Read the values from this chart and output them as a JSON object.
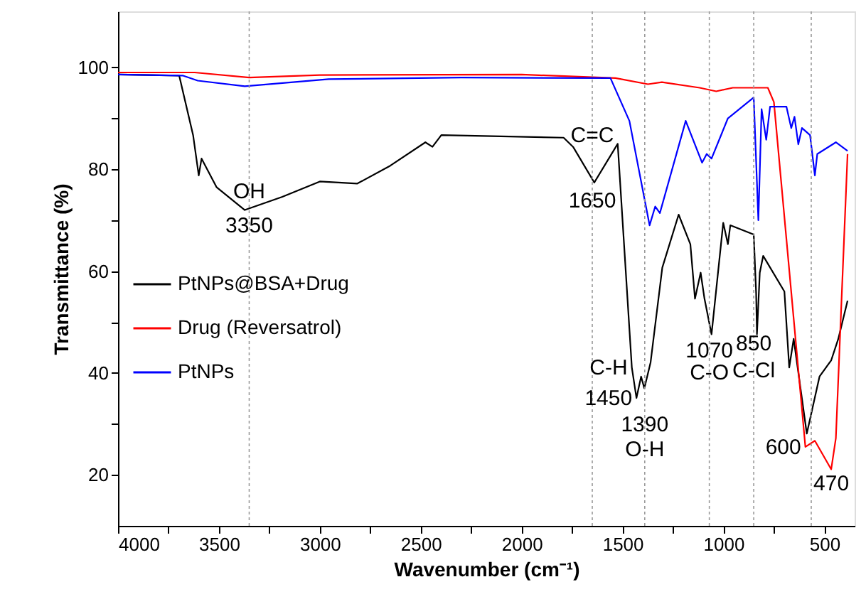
{
  "chart_data": {
    "type": "line",
    "xlabel": "Wavenumber (cm⁻¹)",
    "ylabel": "Transmittance (%)",
    "xlim": [
      4000,
      350
    ],
    "ylim": [
      10,
      111
    ],
    "xticks": [
      4000,
      {
        "value": 3750,
        "label": null
      },
      3500,
      {
        "value": 3250,
        "label": null
      },
      3000,
      {
        "value": 2750,
        "label": null
      },
      2500,
      {
        "value": 2250,
        "label": null
      },
      2000,
      {
        "value": 1750,
        "label": null
      },
      1500,
      {
        "value": 1250,
        "label": null
      },
      1000,
      {
        "value": 750,
        "label": null
      },
      500
    ],
    "yticks": [
      20,
      {
        "value": 30,
        "label": null
      },
      40,
      {
        "value": 50,
        "label": null
      },
      60,
      {
        "value": 70,
        "label": null
      },
      80,
      {
        "value": 90,
        "label": null
      },
      100
    ],
    "grid": false,
    "legend": "left",
    "marker": "none",
    "line_style": "solid",
    "series": [
      {
        "name": "PtNPs@BSA+Drug",
        "color": "#000000",
        "x": [
          4000,
          3697,
          3628,
          3600,
          3586,
          3512,
          3372,
          3186,
          3000,
          2814,
          2651,
          2477,
          2442,
          2398,
          1792,
          1745,
          1640,
          1524,
          1454,
          1431,
          1408,
          1392,
          1361,
          1303,
          1222,
          1164,
          1141,
          1113,
          1094,
          1059,
          1001,
          978,
          966,
          850,
          838,
          834,
          820,
          803,
          698,
          674,
          652,
          587,
          524,
          466,
          431,
          385
        ],
        "values": [
          98.6,
          98.4,
          86.7,
          78.8,
          82.1,
          76.5,
          72.0,
          74.6,
          77.6,
          77.2,
          80.7,
          85.3,
          84.4,
          86.7,
          86.2,
          84.4,
          77.4,
          85.0,
          41.1,
          35.1,
          39.3,
          37.0,
          42.1,
          60.7,
          71.1,
          65.3,
          54.6,
          59.7,
          54.6,
          47.6,
          69.5,
          65.3,
          69.0,
          67.2,
          55.6,
          47.6,
          59.7,
          63.0,
          56.0,
          41.1,
          46.7,
          28.1,
          39.3,
          42.5,
          46.7,
          54.2
        ]
      },
      {
        "name": "Drug (Reversatrol)",
        "color": "#ff0000",
        "x": [
          4000,
          3620,
          3350,
          3000,
          2000,
          1535,
          1374,
          1305,
          1118,
          1036,
          954,
          780,
          750,
          594,
          547,
          466,
          443,
          385
        ],
        "values": [
          99.0,
          99.0,
          98.0,
          98.5,
          98.6,
          97.9,
          96.7,
          97.1,
          96.0,
          95.3,
          96.0,
          96.0,
          93.2,
          25.5,
          26.7,
          21.1,
          27.2,
          83.0
        ]
      },
      {
        "name": "PtNPs",
        "color": "#0000ff",
        "x": [
          4000,
          3680,
          3605,
          3372,
          2956,
          2300,
          1560,
          1466,
          1366,
          1338,
          1315,
          1187,
          1106,
          1083,
          1059,
          978,
          850,
          827,
          811,
          788,
          769,
          688,
          664,
          648,
          629,
          611,
          571,
          547,
          535,
          443,
          385
        ],
        "values": [
          98.6,
          98.4,
          97.4,
          96.3,
          97.7,
          98.0,
          97.9,
          89.5,
          69.0,
          72.7,
          71.4,
          89.5,
          81.3,
          83.0,
          82.1,
          90.0,
          94.1,
          70.0,
          91.8,
          85.8,
          92.3,
          92.3,
          88.1,
          90.3,
          84.9,
          88.1,
          86.7,
          78.8,
          83.0,
          85.3,
          83.6
        ]
      }
    ],
    "ref_lines": [
      {
        "axis": "x",
        "value": 3350,
        "color": "#999999",
        "line_style": "dotted"
      },
      {
        "axis": "x",
        "value": 1650,
        "color": "#999999",
        "line_style": "dotted"
      },
      {
        "axis": "x",
        "value": 1390,
        "color": "#999999",
        "line_style": "dotted"
      },
      {
        "axis": "x",
        "value": 1070,
        "color": "#999999",
        "line_style": "dotted"
      },
      {
        "axis": "x",
        "value": 850,
        "color": "#999999",
        "line_style": "dotted"
      },
      {
        "axis": "x",
        "value": 565,
        "color": "#999999",
        "line_style": "dotted"
      }
    ],
    "annotations": [
      {
        "text": "OH",
        "x": 3350,
        "y": 75.7
      },
      {
        "text": "3350",
        "x": 3350,
        "y": 69.0
      },
      {
        "text": "C=C",
        "x": 1650,
        "y": 86.7
      },
      {
        "text": "1650",
        "x": 1650,
        "y": 73.9
      },
      {
        "text": "1070",
        "x": 1070,
        "y": 44.4
      },
      {
        "text": "850",
        "x": 850,
        "y": 45.8
      },
      {
        "text": "C-H",
        "x": 1454,
        "y": 41.1
      },
      {
        "text": "1450",
        "x": 1431,
        "y": 35.1
      },
      {
        "text": "1390",
        "x": 1390,
        "y": 30.0
      },
      {
        "text": "O-H",
        "x": 1390,
        "y": 25.0
      },
      {
        "text": "C-O",
        "x": 1070,
        "y": 40.2
      },
      {
        "text": "C-Cl",
        "x": 850,
        "y": 40.5
      },
      {
        "text": "600",
        "x": 594,
        "y": 25.5
      },
      {
        "text": "470",
        "x": 466,
        "y": 21.1
      }
    ]
  }
}
